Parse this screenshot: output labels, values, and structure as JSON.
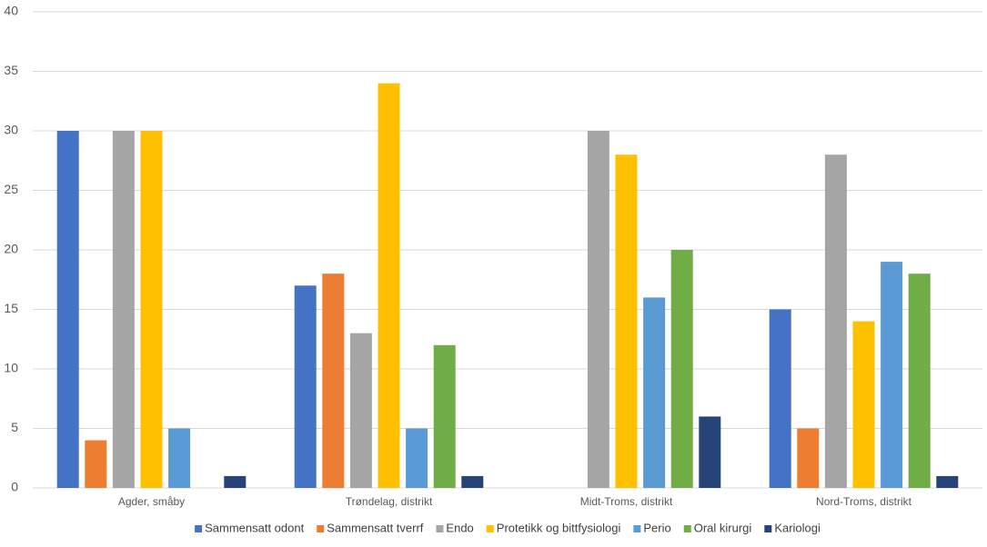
{
  "chart_data": {
    "type": "bar",
    "categories": [
      "Agder, småby",
      "Trøndelag, distrikt",
      "Midt-Troms, distrikt",
      "Nord-Troms, distrikt"
    ],
    "series": [
      {
        "name": "Sammensatt odont",
        "color": "#4472c4",
        "values": [
          30,
          17,
          null,
          15
        ]
      },
      {
        "name": "Sammensatt tverrf",
        "color": "#ed7d31",
        "values": [
          4,
          18,
          null,
          5
        ]
      },
      {
        "name": "Endo",
        "color": "#a5a5a5",
        "values": [
          30,
          13,
          30,
          28
        ]
      },
      {
        "name": "Protetikk og bittfysiologi",
        "color": "#ffc000",
        "values": [
          30,
          34,
          28,
          14
        ]
      },
      {
        "name": "Perio",
        "color": "#5b9bd5",
        "values": [
          5,
          5,
          16,
          19
        ]
      },
      {
        "name": "Oral kirurgi",
        "color": "#70ad47",
        "values": [
          null,
          12,
          20,
          18
        ]
      },
      {
        "name": "Kariologi",
        "color": "#264478",
        "values": [
          1,
          1,
          6,
          1
        ]
      }
    ],
    "ylim": [
      0,
      40
    ],
    "yticks": [
      0,
      5,
      10,
      15,
      20,
      25,
      30,
      35,
      40
    ],
    "grid": true,
    "legend": "bottom"
  }
}
